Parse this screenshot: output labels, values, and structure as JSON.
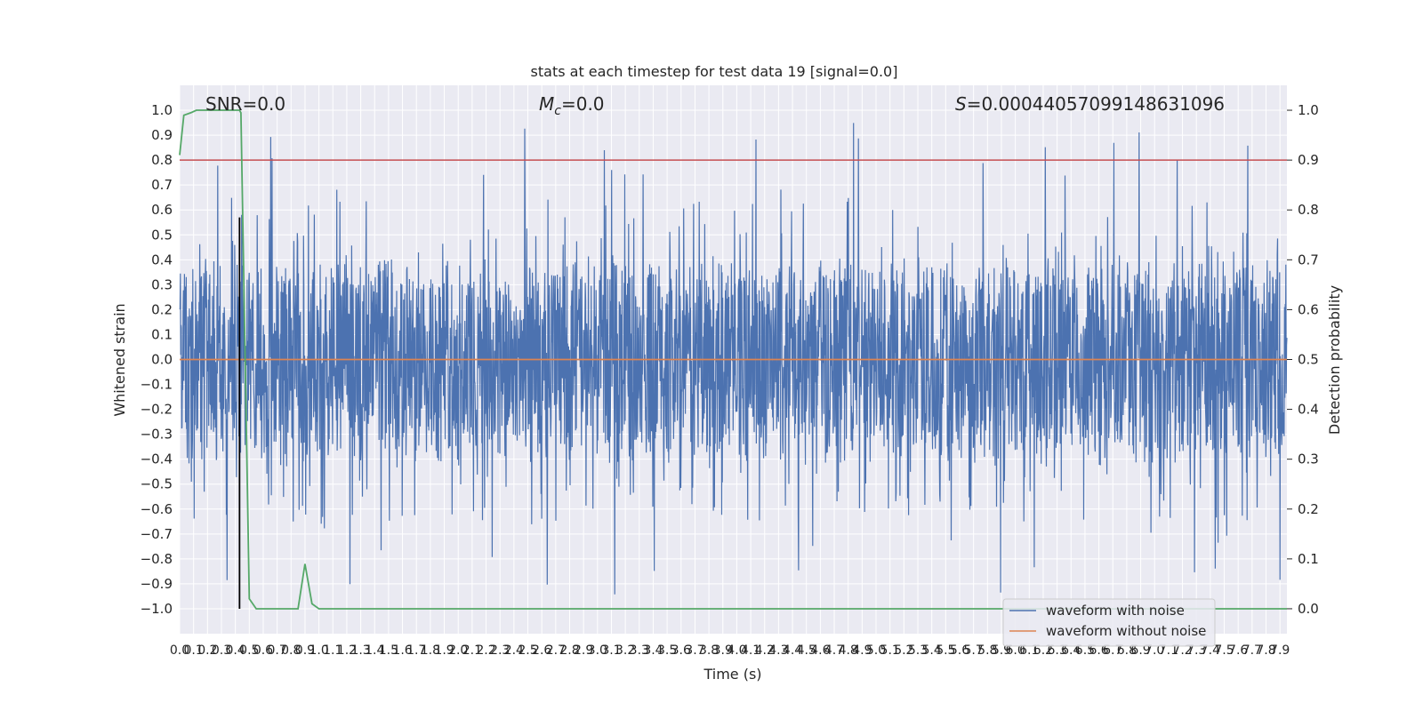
{
  "chart_data": {
    "type": "line",
    "title": "stats at each timestep for test data 19 [signal=0.0]",
    "xlabel": "Time (s)",
    "ylabel": "Whitened strain",
    "ylabel_right": "Detection probability",
    "xlim": [
      0.0,
      7.95
    ],
    "ylim": [
      -1.1,
      1.1
    ],
    "ylim_right": [
      -0.05,
      1.05
    ],
    "x_ticks": [
      "0.0",
      "0.1",
      "0.2",
      "0.3",
      "0.4",
      "0.5",
      "0.6",
      "0.7",
      "0.8",
      "0.9",
      "1.0",
      "1.1",
      "1.2",
      "1.3",
      "1.4",
      "1.5",
      "1.6",
      "1.7",
      "1.8",
      "1.9",
      "2.0",
      "2.1",
      "2.2",
      "2.3",
      "2.4",
      "2.5",
      "2.6",
      "2.7",
      "2.8",
      "2.9",
      "3.0",
      "3.1",
      "3.2",
      "3.3",
      "3.4",
      "3.5",
      "3.6",
      "3.7",
      "3.8",
      "3.9",
      "4.0",
      "4.1",
      "4.2",
      "4.3",
      "4.4",
      "4.5",
      "4.6",
      "4.7",
      "4.8",
      "4.9",
      "5.0",
      "5.1",
      "5.2",
      "5.3",
      "5.4",
      "5.5",
      "5.6",
      "5.7",
      "5.8",
      "5.9",
      "6.0",
      "6.1",
      "6.2",
      "6.3",
      "6.4",
      "6.5",
      "6.6",
      "6.7",
      "6.8",
      "6.9",
      "7.0",
      "7.1",
      "7.2",
      "7.3",
      "7.4",
      "7.5",
      "7.6",
      "7.7",
      "7.8",
      "7.9"
    ],
    "y_ticks": [
      "−1.0",
      "−0.9",
      "−0.8",
      "−0.7",
      "−0.6",
      "−0.5",
      "−0.4",
      "−0.3",
      "−0.2",
      "−0.1",
      "0.0",
      "0.1",
      "0.2",
      "0.3",
      "0.4",
      "0.5",
      "0.6",
      "0.7",
      "0.8",
      "0.9",
      "1.0"
    ],
    "y_ticks_right": [
      "0.0",
      "0.1",
      "0.2",
      "0.3",
      "0.4",
      "0.5",
      "0.6",
      "0.7",
      "0.8",
      "0.9",
      "1.0"
    ],
    "grid": true,
    "legend": {
      "placement": "lower-right",
      "entries": [
        {
          "label": "waveform with noise",
          "color": "#4c72b0"
        },
        {
          "label": "waveform without noise",
          "color": "#dd8452"
        }
      ]
    },
    "annotations": {
      "snr": "SNR=0.0",
      "mc_symbol": "M",
      "mc_sub": "c",
      "mc_value": "=0.0",
      "s_symbol": "S",
      "s_value": "=0.00044057099148631096"
    },
    "series": [
      {
        "name": "waveform with noise",
        "axis": "left",
        "color": "#4c72b0",
        "description_values": {
          "typical_abs_max": 0.4,
          "min": -1.0,
          "max": 0.98
        }
      },
      {
        "name": "waveform without noise",
        "axis": "left",
        "color": "#dd8452",
        "values_constant": 0.0
      },
      {
        "axis": "right",
        "color": "#55a868",
        "x": [
          0.0,
          0.03,
          0.08,
          0.12,
          0.2,
          0.3,
          0.43,
          0.44,
          0.5,
          0.55,
          0.6,
          0.7,
          0.8,
          0.85,
          0.9,
          0.95,
          1.0,
          1.1,
          1.5,
          2.3,
          2.5,
          3.0,
          4.0,
          5.0,
          6.0,
          7.0,
          7.95
        ],
        "y": [
          0.91,
          0.99,
          0.995,
          1.0,
          1.0,
          1.0,
          1.0,
          0.995,
          0.02,
          0.0,
          0.0,
          0.0,
          0.0,
          0.0,
          0.09,
          0.01,
          0.0,
          0.0,
          0.0,
          0.0,
          0.0,
          0.0,
          0.0,
          0.0,
          0.0,
          0.0,
          0.0
        ]
      }
    ],
    "reference_lines": [
      {
        "orientation": "horizontal",
        "axis": "right",
        "value": 0.9,
        "color": "#c44e52"
      },
      {
        "orientation": "vertical",
        "value": 0.43,
        "ymin": -1.0,
        "ymax": 0.57,
        "color": "#000000"
      }
    ]
  }
}
